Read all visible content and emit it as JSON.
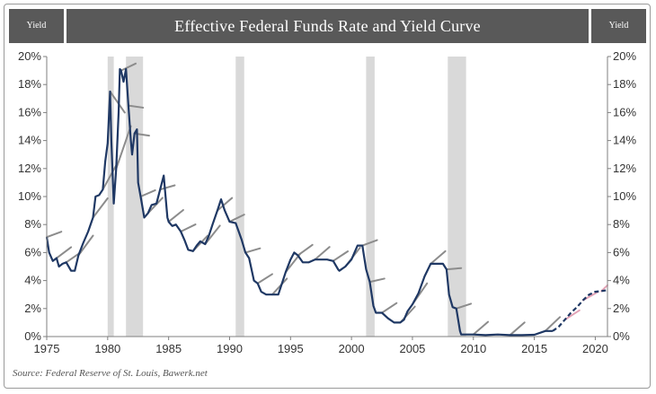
{
  "header": {
    "left_label": "Yield",
    "title": "Effective Federal Funds Rate and Yield Curve",
    "right_label": "Yield"
  },
  "source": "Source: Federal Reserve of St. Louis, Bawerk.net",
  "chart_data": {
    "type": "line",
    "title": "Effective Federal Funds Rate and Yield Curve",
    "xlabel": "",
    "ylabel": "Yield",
    "xlim": [
      1975,
      2021
    ],
    "ylim": [
      0,
      20
    ],
    "x_ticks": [
      1975,
      1980,
      1985,
      1990,
      1995,
      2000,
      2005,
      2010,
      2015,
      2020
    ],
    "y_ticks_left": [
      "0%",
      "2%",
      "4%",
      "6%",
      "8%",
      "10%",
      "12%",
      "14%",
      "16%",
      "18%",
      "20%"
    ],
    "y_ticks_right": [
      "0%",
      "2%",
      "4%",
      "6%",
      "8%",
      "10%",
      "12%",
      "14%",
      "16%",
      "18%",
      "20%"
    ],
    "grid": false,
    "recessions": [
      [
        1980.0,
        1980.5
      ],
      [
        1981.5,
        1982.9
      ],
      [
        1990.5,
        1991.2
      ],
      [
        2001.2,
        2001.9
      ],
      [
        2007.9,
        2009.4
      ]
    ],
    "series": [
      {
        "color": "#1f3864",
        "style": "solid",
        "x": [
          1975.0,
          1975.2,
          1975.5,
          1975.8,
          1976.0,
          1976.3,
          1976.6,
          1977.0,
          1977.3,
          1977.6,
          1978.0,
          1978.4,
          1978.8,
          1979.0,
          1979.3,
          1979.6,
          1979.8,
          1980.0,
          1980.2,
          1980.3,
          1980.5,
          1980.7,
          1980.9,
          1981.0,
          1981.1,
          1981.3,
          1981.5,
          1981.7,
          1981.9,
          1982.0,
          1982.2,
          1982.4,
          1982.5,
          1982.7,
          1982.9,
          1983.0,
          1983.3,
          1983.6,
          1984.0,
          1984.3,
          1984.6,
          1984.9,
          1985.0,
          1985.3,
          1985.6,
          1986.0,
          1986.3,
          1986.6,
          1987.0,
          1987.3,
          1987.6,
          1988.0,
          1988.3,
          1988.6,
          1989.0,
          1989.3,
          1989.6,
          1990.0,
          1990.5,
          1991.0,
          1991.3,
          1991.6,
          1992.0,
          1992.3,
          1992.6,
          1993.0,
          1993.5,
          1994.0,
          1994.3,
          1994.6,
          1995.0,
          1995.3,
          1995.6,
          1996.0,
          1996.5,
          1997.0,
          1997.5,
          1998.0,
          1998.5,
          1998.9,
          1999.0,
          1999.5,
          2000.0,
          2000.5,
          2000.9,
          2001.0,
          2001.2,
          2001.5,
          2001.8,
          2002.0,
          2002.5,
          2003.0,
          2003.5,
          2004.0,
          2004.3,
          2004.6,
          2005.0,
          2005.5,
          2006.0,
          2006.5,
          2007.0,
          2007.5,
          2007.8,
          2008.0,
          2008.3,
          2008.6,
          2008.9,
          2009.0,
          2010.0,
          2011.0,
          2012.0,
          2013.0,
          2014.0,
          2015.0,
          2015.9,
          2016.5,
          2017.0,
          2017.5,
          2018.0,
          2018.5,
          2019.0,
          2019.5,
          2020.0,
          2020.5,
          2020.9
        ],
        "y": [
          7.1,
          6.0,
          5.4,
          5.6,
          5.0,
          5.2,
          5.3,
          4.7,
          4.7,
          5.8,
          6.7,
          7.5,
          8.5,
          10.0,
          10.1,
          10.5,
          12.5,
          13.8,
          17.5,
          14.0,
          9.5,
          12.0,
          16.0,
          19.1,
          19.0,
          18.2,
          19.1,
          16.5,
          14.0,
          13.0,
          14.5,
          14.8,
          11.0,
          10.0,
          9.0,
          8.5,
          8.8,
          9.4,
          9.5,
          10.5,
          11.5,
          8.5,
          8.2,
          7.9,
          8.0,
          7.5,
          6.9,
          6.2,
          6.1,
          6.5,
          6.8,
          6.6,
          7.2,
          8.0,
          9.0,
          9.8,
          9.0,
          8.2,
          8.1,
          6.9,
          6.0,
          5.6,
          4.0,
          3.8,
          3.2,
          3.0,
          3.0,
          3.0,
          3.8,
          4.6,
          5.5,
          6.0,
          5.8,
          5.3,
          5.3,
          5.5,
          5.5,
          5.5,
          5.4,
          4.8,
          4.7,
          5.0,
          5.5,
          6.5,
          6.5,
          5.9,
          4.8,
          3.9,
          2.2,
          1.7,
          1.7,
          1.3,
          1.0,
          1.0,
          1.2,
          1.8,
          2.3,
          3.1,
          4.3,
          5.2,
          5.2,
          5.2,
          4.8,
          3.0,
          2.1,
          2.0,
          0.4,
          0.15,
          0.15,
          0.1,
          0.15,
          0.1,
          0.1,
          0.13,
          0.4,
          0.4,
          0.7,
          1.2,
          1.7,
          2.1,
          2.6,
          3.0,
          3.2,
          3.25,
          3.3
        ]
      }
    ]
  }
}
